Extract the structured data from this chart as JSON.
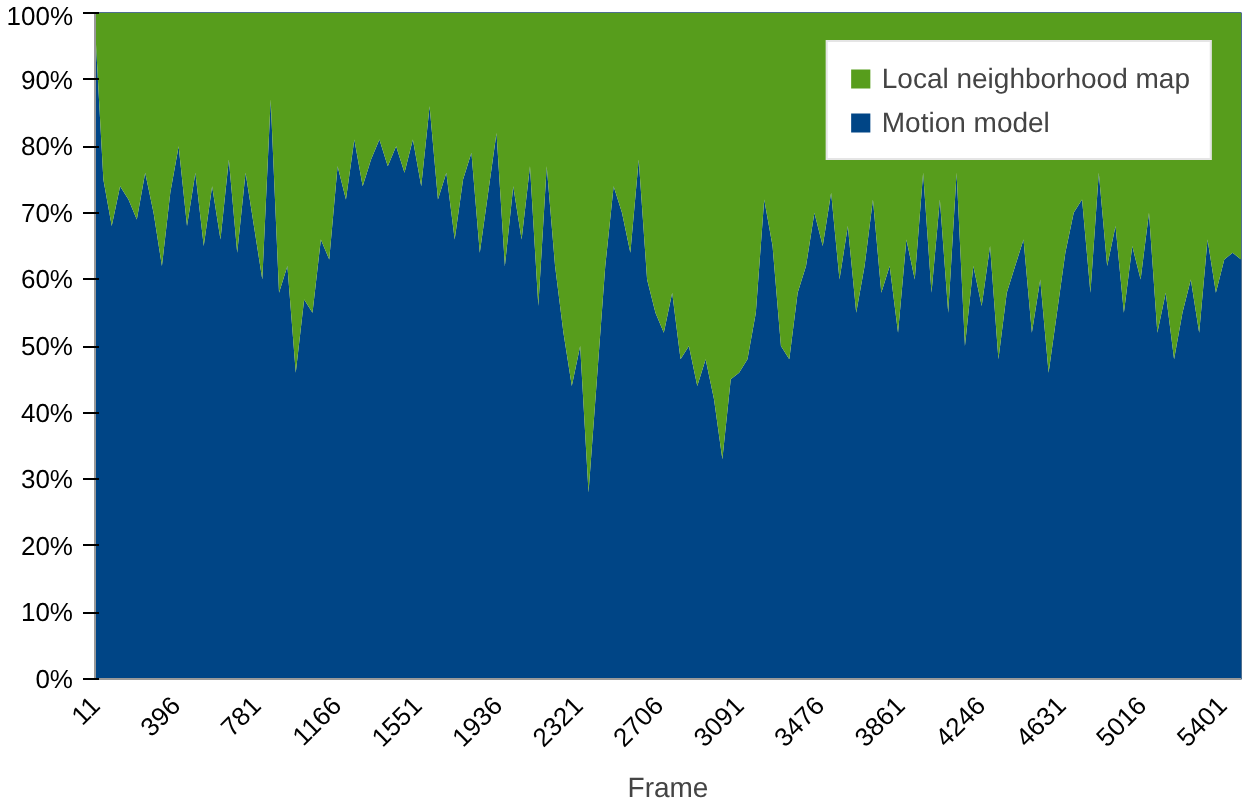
{
  "chart_data": {
    "type": "area",
    "stacked": true,
    "xlabel": "Frame",
    "x": [
      11,
      51,
      91,
      131,
      171,
      211,
      251,
      291,
      331,
      371,
      411,
      451,
      491,
      531,
      571,
      611,
      651,
      691,
      731,
      771,
      811,
      851,
      891,
      931,
      971,
      1011,
      1051,
      1091,
      1131,
      1171,
      1211,
      1251,
      1291,
      1331,
      1371,
      1411,
      1451,
      1491,
      1531,
      1571,
      1611,
      1651,
      1691,
      1731,
      1771,
      1811,
      1851,
      1891,
      1931,
      1971,
      2011,
      2051,
      2091,
      2131,
      2171,
      2211,
      2251,
      2291,
      2331,
      2371,
      2411,
      2451,
      2491,
      2531,
      2571,
      2611,
      2651,
      2691,
      2731,
      2771,
      2811,
      2851,
      2891,
      2931,
      2971,
      3011,
      3051,
      3091,
      3131,
      3171,
      3211,
      3251,
      3291,
      3331,
      3371,
      3411,
      3451,
      3491,
      3531,
      3571,
      3611,
      3651,
      3691,
      3731,
      3771,
      3811,
      3851,
      3891,
      3931,
      3971,
      4011,
      4051,
      4091,
      4131,
      4171,
      4211,
      4251,
      4291,
      4331,
      4371,
      4411,
      4451,
      4491,
      4531,
      4571,
      4611,
      4651,
      4691,
      4731,
      4771,
      4811,
      4851,
      4891,
      4931,
      4971,
      5011,
      5051,
      5091,
      5131,
      5171,
      5211,
      5251,
      5291,
      5331,
      5371,
      5411,
      5451,
      5491
    ],
    "series": [
      {
        "name": "Motion model",
        "color": "#004586",
        "values": [
          98,
          75,
          68,
          74,
          72,
          69,
          76,
          70,
          62,
          73,
          80,
          68,
          76,
          65,
          74,
          66,
          78,
          64,
          76,
          68,
          60,
          87,
          58,
          62,
          46,
          57,
          55,
          66,
          63,
          77,
          72,
          81,
          74,
          78,
          81,
          77,
          80,
          76,
          81,
          74,
          86,
          72,
          76,
          66,
          75,
          79,
          64,
          73,
          82,
          62,
          74,
          66,
          77,
          56,
          77,
          62,
          52,
          44,
          50,
          28,
          45,
          62,
          74,
          70,
          64,
          78,
          60,
          55,
          52,
          58,
          48,
          50,
          44,
          48,
          42,
          33,
          45,
          46,
          48,
          55,
          72,
          65,
          50,
          48,
          58,
          62,
          70,
          65,
          73,
          60,
          68,
          55,
          62,
          72,
          58,
          62,
          52,
          66,
          60,
          76,
          58,
          72,
          55,
          76,
          50,
          62,
          56,
          65,
          48,
          58,
          62,
          66,
          52,
          60,
          46,
          55,
          64,
          70,
          72,
          58,
          76,
          62,
          68,
          55,
          65,
          60,
          70,
          52,
          58,
          48,
          55,
          60,
          52,
          66,
          58,
          63,
          64,
          63
        ]
      },
      {
        "name": "Local neighborhood map",
        "color": "#579d1c",
        "values": [
          2,
          25,
          32,
          26,
          28,
          31,
          24,
          30,
          38,
          27,
          20,
          32,
          24,
          35,
          26,
          34,
          22,
          36,
          24,
          32,
          40,
          13,
          42,
          38,
          54,
          43,
          45,
          34,
          37,
          23,
          28,
          19,
          26,
          22,
          19,
          23,
          20,
          24,
          19,
          26,
          14,
          28,
          24,
          34,
          25,
          21,
          36,
          27,
          18,
          38,
          26,
          34,
          23,
          44,
          23,
          38,
          48,
          56,
          50,
          72,
          55,
          38,
          26,
          30,
          36,
          22,
          40,
          45,
          48,
          42,
          52,
          50,
          56,
          52,
          58,
          67,
          55,
          54,
          52,
          45,
          28,
          35,
          50,
          52,
          42,
          38,
          30,
          35,
          27,
          40,
          32,
          45,
          38,
          28,
          42,
          38,
          48,
          34,
          40,
          24,
          42,
          28,
          45,
          24,
          50,
          38,
          44,
          35,
          52,
          42,
          38,
          34,
          48,
          40,
          54,
          45,
          36,
          30,
          28,
          42,
          24,
          38,
          32,
          45,
          35,
          40,
          30,
          48,
          42,
          52,
          45,
          40,
          48,
          34,
          42,
          37,
          36,
          37
        ]
      }
    ],
    "xlim": [
      11,
      5491
    ],
    "ylim": [
      0,
      100
    ],
    "xticks": [
      11,
      396,
      781,
      1166,
      1551,
      1936,
      2321,
      2706,
      3091,
      3476,
      3861,
      4246,
      4631,
      5016,
      5401
    ],
    "yticks": [
      {
        "value": 0,
        "label": "0%"
      },
      {
        "value": 10,
        "label": "10%"
      },
      {
        "value": 20,
        "label": "20%"
      },
      {
        "value": 30,
        "label": "30%"
      },
      {
        "value": 40,
        "label": "40%"
      },
      {
        "value": 50,
        "label": "50%"
      },
      {
        "value": 60,
        "label": "60%"
      },
      {
        "value": 70,
        "label": "70%"
      },
      {
        "value": 80,
        "label": "80%"
      },
      {
        "value": 90,
        "label": "90%"
      },
      {
        "value": 100,
        "label": "100%"
      }
    ],
    "legend": "top right",
    "grid": false
  }
}
